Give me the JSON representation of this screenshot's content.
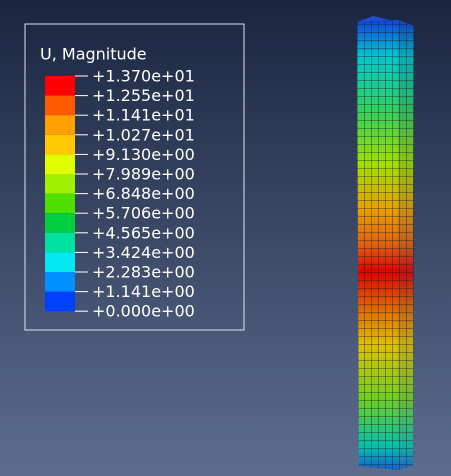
{
  "legend": {
    "title": "U, Magnitude",
    "labels": [
      "+1.370e+01",
      "+1.255e+01",
      "+1.141e+01",
      "+1.027e+01",
      "+9.130e+00",
      "+7.989e+00",
      "+6.848e+00",
      "+5.706e+00",
      "+4.565e+00",
      "+3.424e+00",
      "+2.283e+00",
      "+1.141e+00",
      "+0.000e+00"
    ],
    "colors": [
      "#ff0000",
      "#ff5a00",
      "#ffa000",
      "#ffc800",
      "#e0ff00",
      "#a0f000",
      "#50e000",
      "#00d040",
      "#00e0a0",
      "#00e8f0",
      "#0090ff",
      "#0040ff"
    ]
  }
}
